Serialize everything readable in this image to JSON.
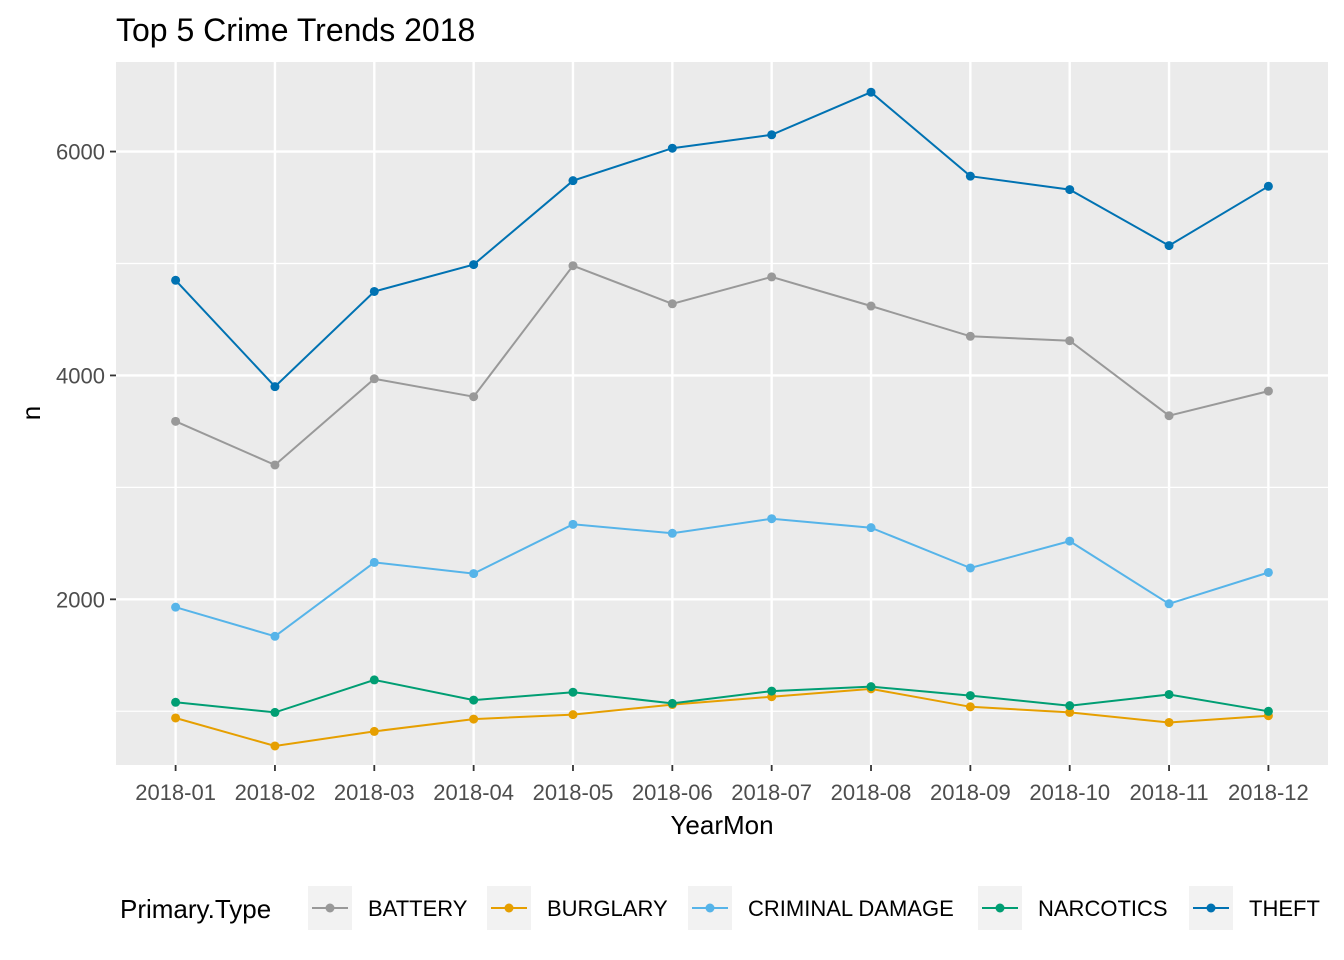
{
  "chart_data": {
    "type": "line",
    "title": "Top 5 Crime Trends 2018",
    "xlabel": "YearMon",
    "ylabel": "n",
    "categories": [
      "2018-01",
      "2018-02",
      "2018-03",
      "2018-04",
      "2018-05",
      "2018-06",
      "2018-07",
      "2018-08",
      "2018-09",
      "2018-10",
      "2018-11",
      "2018-12"
    ],
    "ylim": [
      520,
      6800
    ],
    "yticks": [
      2000,
      4000,
      6000
    ],
    "ytick_labels": [
      "2000",
      "4000",
      "6000"
    ],
    "grid": true,
    "legend": {
      "title": "Primary.Type",
      "position": "bottom"
    },
    "series": [
      {
        "name": "BATTERY",
        "color": "#999999",
        "values": [
          3590,
          3200,
          3970,
          3810,
          4980,
          4640,
          4880,
          4620,
          4350,
          4310,
          3640,
          3860
        ]
      },
      {
        "name": "BURGLARY",
        "color": "#E69F00",
        "values": [
          940,
          690,
          820,
          930,
          970,
          1060,
          1130,
          1200,
          1040,
          990,
          900,
          960
        ]
      },
      {
        "name": "CRIMINAL DAMAGE",
        "color": "#56B4E9",
        "values": [
          1930,
          1670,
          2330,
          2230,
          2670,
          2590,
          2720,
          2640,
          2280,
          2520,
          1960,
          2240
        ]
      },
      {
        "name": "NARCOTICS",
        "color": "#009E73",
        "values": [
          1080,
          990,
          1280,
          1100,
          1170,
          1070,
          1180,
          1220,
          1140,
          1050,
          1150,
          1000
        ]
      },
      {
        "name": "THEFT",
        "color": "#0072B2",
        "values": [
          4850,
          3900,
          4750,
          4990,
          5740,
          6030,
          6150,
          6530,
          5780,
          5660,
          5160,
          5690
        ]
      }
    ]
  }
}
